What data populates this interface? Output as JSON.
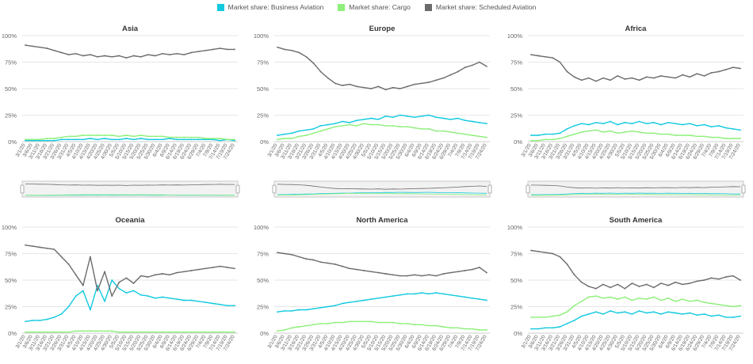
{
  "legend": [
    {
      "label": "Market share: Business Aviation",
      "color": "#12c9e0"
    },
    {
      "label": "Market share: Cargo",
      "color": "#8df07a"
    },
    {
      "label": "Market share: Scheduled Aviation",
      "color": "#6b6b6b"
    }
  ],
  "chart_data": [
    {
      "type": "line",
      "title": "Asia",
      "ylim": [
        0,
        100
      ],
      "yticks": [
        "0%",
        "25%",
        "50%",
        "75%",
        "100%"
      ],
      "x": [
        "3/1/20",
        "3/6/20",
        "3/11/20",
        "3/16/20",
        "3/21/20",
        "3/26/20",
        "3/31/20",
        "4/5/20",
        "4/10/20",
        "4/15/20",
        "4/20/20",
        "4/25/20",
        "4/30/20",
        "5/5/20",
        "5/10/20",
        "5/15/20",
        "5/20/20",
        "5/25/20",
        "5/30/20",
        "6/4/20",
        "6/9/20",
        "6/14/20",
        "6/19/20",
        "6/24/20",
        "6/29/20",
        "7/4/20",
        "7/9/20",
        "7/14/20",
        "7/19/20",
        "7/24/20"
      ],
      "navigator": true,
      "series": [
        {
          "name": "Market share: Business Aviation",
          "values": [
            1,
            1,
            1,
            1,
            1,
            2,
            2,
            2,
            2,
            3,
            2,
            3,
            2,
            2,
            3,
            2,
            3,
            2,
            2,
            2,
            3,
            2,
            2,
            2,
            2,
            2,
            2,
            1,
            2,
            1
          ]
        },
        {
          "name": "Market share: Cargo",
          "values": [
            2,
            2,
            2,
            3,
            3,
            4,
            5,
            5,
            6,
            6,
            6,
            6,
            6,
            5,
            6,
            5,
            6,
            5,
            5,
            5,
            4,
            4,
            4,
            4,
            4,
            3,
            3,
            3,
            2,
            2
          ]
        },
        {
          "name": "Market share: Scheduled Aviation",
          "values": [
            91,
            90,
            89,
            88,
            86,
            84,
            82,
            83,
            81,
            82,
            80,
            81,
            80,
            81,
            79,
            81,
            80,
            82,
            81,
            83,
            82,
            83,
            82,
            84,
            85,
            86,
            87,
            88,
            87,
            87
          ]
        }
      ]
    },
    {
      "type": "line",
      "title": "Europe",
      "ylim": [
        0,
        100
      ],
      "yticks": [
        "0%",
        "25%",
        "50%",
        "75%",
        "100%"
      ],
      "x": [
        "3/1/20",
        "3/6/20",
        "3/11/20",
        "3/16/20",
        "3/21/20",
        "3/26/20",
        "3/31/20",
        "4/5/20",
        "4/10/20",
        "4/15/20",
        "4/20/20",
        "4/25/20",
        "4/30/20",
        "5/5/20",
        "5/10/20",
        "5/15/20",
        "5/20/20",
        "5/25/20",
        "5/30/20",
        "6/4/20",
        "6/9/20",
        "6/14/20",
        "6/19/20",
        "6/24/20",
        "6/29/20",
        "7/4/20",
        "7/9/20",
        "7/14/20",
        "7/19/20",
        "7/24/20"
      ],
      "navigator": true,
      "series": [
        {
          "name": "Market share: Business Aviation",
          "values": [
            6,
            7,
            8,
            10,
            11,
            12,
            15,
            16,
            17,
            19,
            18,
            20,
            21,
            22,
            21,
            24,
            23,
            25,
            24,
            23,
            24,
            25,
            23,
            22,
            21,
            22,
            20,
            19,
            18,
            17
          ]
        },
        {
          "name": "Market share: Cargo",
          "values": [
            2,
            3,
            3,
            5,
            6,
            8,
            10,
            12,
            14,
            15,
            16,
            15,
            17,
            16,
            16,
            15,
            15,
            14,
            14,
            13,
            12,
            12,
            10,
            10,
            9,
            8,
            7,
            6,
            5,
            4
          ]
        },
        {
          "name": "Market share: Scheduled Aviation",
          "values": [
            89,
            87,
            86,
            84,
            80,
            74,
            66,
            60,
            55,
            53,
            54,
            52,
            51,
            50,
            52,
            49,
            51,
            50,
            52,
            54,
            55,
            56,
            58,
            60,
            63,
            66,
            70,
            72,
            75,
            71
          ]
        }
      ]
    },
    {
      "type": "line",
      "title": "Africa",
      "ylim": [
        0,
        100
      ],
      "yticks": [
        "0%",
        "25%",
        "50%",
        "75%",
        "100%"
      ],
      "x": [
        "3/1/20",
        "3/6/20",
        "3/11/20",
        "3/16/20",
        "3/21/20",
        "3/26/20",
        "3/31/20",
        "4/5/20",
        "4/10/20",
        "4/15/20",
        "4/20/20",
        "4/25/20",
        "4/30/20",
        "5/5/20",
        "5/10/20",
        "5/15/20",
        "5/20/20",
        "5/25/20",
        "5/30/20",
        "6/4/20",
        "6/9/20",
        "6/14/20",
        "6/19/20",
        "6/24/20",
        "6/29/20",
        "7/4/20",
        "7/9/20",
        "7/14/20",
        "7/19/20",
        "7/24/20"
      ],
      "navigator": true,
      "series": [
        {
          "name": "Market share: Business Aviation",
          "values": [
            6,
            6,
            7,
            7,
            8,
            12,
            15,
            17,
            16,
            18,
            17,
            19,
            16,
            18,
            17,
            19,
            17,
            18,
            16,
            18,
            17,
            16,
            17,
            15,
            16,
            14,
            15,
            13,
            12,
            11
          ]
        },
        {
          "name": "Market share: Cargo",
          "values": [
            1,
            1,
            2,
            2,
            3,
            5,
            7,
            9,
            10,
            11,
            9,
            10,
            8,
            9,
            10,
            9,
            8,
            8,
            7,
            7,
            6,
            6,
            6,
            5,
            5,
            4,
            4,
            3,
            3,
            3
          ]
        },
        {
          "name": "Market share: Scheduled Aviation",
          "values": [
            82,
            81,
            80,
            79,
            75,
            66,
            61,
            58,
            60,
            57,
            60,
            58,
            62,
            59,
            60,
            58,
            61,
            60,
            62,
            61,
            60,
            63,
            61,
            64,
            62,
            65,
            66,
            68,
            70,
            69
          ]
        }
      ]
    },
    {
      "type": "line",
      "title": "Oceania",
      "ylim": [
        0,
        100
      ],
      "yticks": [
        "0%",
        "25%",
        "50%",
        "75%",
        "100%"
      ],
      "x": [
        "3/1/20",
        "3/6/20",
        "3/11/20",
        "3/16/20",
        "3/21/20",
        "3/26/20",
        "3/31/20",
        "4/5/20",
        "4/10/20",
        "4/15/20",
        "4/20/20",
        "4/25/20",
        "4/30/20",
        "5/5/20",
        "5/10/20",
        "5/15/20",
        "5/20/20",
        "5/25/20",
        "5/30/20",
        "6/4/20",
        "6/9/20",
        "6/14/20",
        "6/19/20",
        "6/24/20",
        "6/29/20",
        "7/4/20",
        "7/9/20",
        "7/14/20",
        "7/19/20",
        "7/24/20"
      ],
      "navigator": false,
      "series": [
        {
          "name": "Market share: Business Aviation",
          "values": [
            11,
            12,
            12,
            13,
            15,
            18,
            25,
            35,
            40,
            22,
            45,
            30,
            50,
            42,
            38,
            40,
            36,
            35,
            33,
            34,
            33,
            32,
            31,
            31,
            30,
            29,
            28,
            27,
            26,
            26
          ]
        },
        {
          "name": "Market share: Cargo",
          "values": [
            1,
            1,
            1,
            1,
            1,
            1,
            1,
            2,
            2,
            2,
            2,
            2,
            2,
            1,
            1,
            1,
            1,
            1,
            1,
            1,
            1,
            1,
            1,
            1,
            1,
            1,
            1,
            1,
            1,
            1
          ]
        },
        {
          "name": "Market share: Scheduled Aviation",
          "values": [
            83,
            82,
            81,
            80,
            79,
            72,
            65,
            55,
            45,
            72,
            40,
            58,
            35,
            48,
            52,
            47,
            54,
            53,
            55,
            56,
            55,
            57,
            58,
            59,
            60,
            61,
            62,
            63,
            62,
            61
          ]
        }
      ]
    },
    {
      "type": "line",
      "title": "North America",
      "ylim": [
        0,
        100
      ],
      "yticks": [
        "0%",
        "25%",
        "50%",
        "75%",
        "100%"
      ],
      "x": [
        "3/1/20",
        "3/6/20",
        "3/11/20",
        "3/16/20",
        "3/21/20",
        "3/26/20",
        "3/31/20",
        "4/5/20",
        "4/10/20",
        "4/15/20",
        "4/20/20",
        "4/25/20",
        "4/30/20",
        "5/5/20",
        "5/10/20",
        "5/15/20",
        "5/20/20",
        "5/25/20",
        "5/30/20",
        "6/4/20",
        "6/9/20",
        "6/14/20",
        "6/19/20",
        "6/24/20",
        "6/29/20",
        "7/4/20",
        "7/9/20",
        "7/14/20",
        "7/19/20",
        "7/24/20"
      ],
      "navigator": false,
      "series": [
        {
          "name": "Market share: Business Aviation",
          "values": [
            20,
            21,
            21,
            22,
            22,
            23,
            24,
            25,
            26,
            28,
            29,
            30,
            31,
            32,
            33,
            34,
            35,
            36,
            37,
            37,
            38,
            37,
            38,
            37,
            36,
            35,
            34,
            33,
            32,
            31
          ]
        },
        {
          "name": "Market share: Cargo",
          "values": [
            2,
            3,
            5,
            6,
            7,
            8,
            9,
            9,
            10,
            10,
            11,
            11,
            11,
            11,
            10,
            10,
            10,
            9,
            9,
            8,
            8,
            7,
            7,
            6,
            5,
            5,
            4,
            4,
            3,
            3
          ]
        },
        {
          "name": "Market share: Scheduled Aviation",
          "values": [
            76,
            75,
            74,
            72,
            70,
            69,
            67,
            66,
            65,
            63,
            61,
            60,
            59,
            58,
            57,
            56,
            55,
            54,
            54,
            55,
            54,
            55,
            54,
            56,
            57,
            58,
            59,
            60,
            62,
            57
          ]
        }
      ]
    },
    {
      "type": "line",
      "title": "South America",
      "ylim": [
        0,
        100
      ],
      "yticks": [
        "0%",
        "25%",
        "50%",
        "75%",
        "100%"
      ],
      "x": [
        "3/1/20",
        "3/6/20",
        "3/11/20",
        "3/16/20",
        "3/21/20",
        "3/26/20",
        "3/31/20",
        "4/5/20",
        "4/10/20",
        "4/15/20",
        "4/20/20",
        "4/25/20",
        "4/30/20",
        "5/5/20",
        "5/10/20",
        "5/15/20",
        "5/20/20",
        "5/25/20",
        "5/30/20",
        "6/4/20",
        "6/9/20",
        "6/14/20",
        "6/19/20",
        "6/24/20",
        "6/29/20",
        "7/4/20",
        "7/9/20",
        "7/14/20",
        "7/19/20",
        "7/24/20"
      ],
      "navigator": false,
      "series": [
        {
          "name": "Market share: Business Aviation",
          "values": [
            4,
            4,
            5,
            5,
            6,
            9,
            12,
            16,
            18,
            20,
            18,
            21,
            19,
            20,
            18,
            21,
            19,
            20,
            18,
            20,
            19,
            18,
            19,
            17,
            18,
            16,
            17,
            15,
            15,
            16
          ]
        },
        {
          "name": "Market share: Cargo",
          "values": [
            15,
            15,
            15,
            16,
            17,
            20,
            26,
            30,
            34,
            35,
            33,
            34,
            32,
            34,
            31,
            33,
            32,
            34,
            31,
            33,
            30,
            32,
            30,
            31,
            29,
            28,
            27,
            26,
            25,
            26
          ]
        },
        {
          "name": "Market share: Scheduled Aviation",
          "values": [
            78,
            77,
            76,
            75,
            72,
            65,
            55,
            48,
            44,
            42,
            46,
            43,
            46,
            42,
            47,
            44,
            46,
            43,
            47,
            45,
            48,
            46,
            47,
            49,
            50,
            52,
            51,
            53,
            54,
            50
          ]
        }
      ]
    }
  ]
}
